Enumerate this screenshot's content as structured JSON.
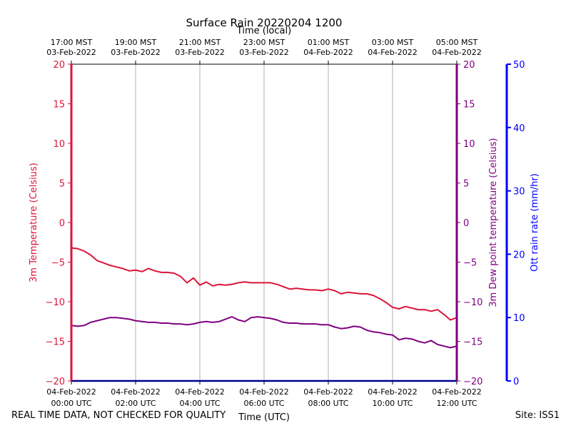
{
  "chart_data": {
    "type": "line",
    "title": "Surface Rain 20220204 1200",
    "top_axis_label": "Time (local)",
    "bottom_axis_label": "Time (UTC)",
    "x_range_hours_utc": [
      0,
      12
    ],
    "top_ticks": [
      {
        "hour": 0,
        "time": "17:00 MST",
        "date": "03-Feb-2022"
      },
      {
        "hour": 2,
        "time": "19:00 MST",
        "date": "03-Feb-2022"
      },
      {
        "hour": 4,
        "time": "21:00 MST",
        "date": "03-Feb-2022"
      },
      {
        "hour": 6,
        "time": "23:00 MST",
        "date": "03-Feb-2022"
      },
      {
        "hour": 8,
        "time": "01:00 MST",
        "date": "04-Feb-2022"
      },
      {
        "hour": 10,
        "time": "03:00 MST",
        "date": "04-Feb-2022"
      },
      {
        "hour": 12,
        "time": "05:00 MST",
        "date": "04-Feb-2022"
      }
    ],
    "bottom_ticks": [
      {
        "hour": 0,
        "date": "04-Feb-2022",
        "time": "00:00 UTC"
      },
      {
        "hour": 2,
        "date": "04-Feb-2022",
        "time": "02:00 UTC"
      },
      {
        "hour": 4,
        "date": "04-Feb-2022",
        "time": "04:00 UTC"
      },
      {
        "hour": 6,
        "date": "04-Feb-2022",
        "time": "06:00 UTC"
      },
      {
        "hour": 8,
        "date": "04-Feb-2022",
        "time": "08:00 UTC"
      },
      {
        "hour": 10,
        "date": "04-Feb-2022",
        "time": "10:00 UTC"
      },
      {
        "hour": 12,
        "date": "04-Feb-2022",
        "time": "12:00 UTC"
      }
    ],
    "left_axis": {
      "label": "3m Temperature (Celsius)",
      "ylim": [
        -20,
        20
      ],
      "ticks": [
        -20,
        -15,
        -10,
        -5,
        0,
        5,
        10,
        15,
        20
      ],
      "color": "#dc143c"
    },
    "right_axis": {
      "label": "3m Dew point temperature (Celsius)",
      "ylim": [
        -20,
        20
      ],
      "ticks": [
        -20,
        -15,
        -10,
        -5,
        0,
        5,
        10,
        15,
        20
      ],
      "color": "#800080"
    },
    "rain_axis": {
      "label": "Ott rain rate (mm/hr)",
      "ylim": [
        0,
        50
      ],
      "ticks": [
        0,
        10,
        20,
        30,
        40,
        50
      ],
      "color": "#0000ff"
    },
    "grid": true,
    "series": [
      {
        "name": "3m Temperature",
        "axis": "left",
        "color": "#dc143c",
        "x": [
          0,
          0.2,
          0.4,
          0.6,
          0.8,
          1.0,
          1.2,
          1.4,
          1.6,
          1.8,
          2.0,
          2.2,
          2.4,
          2.6,
          2.8,
          3.0,
          3.2,
          3.4,
          3.6,
          3.8,
          4.0,
          4.2,
          4.4,
          4.6,
          4.8,
          5.0,
          5.2,
          5.4,
          5.6,
          5.8,
          6.0,
          6.2,
          6.4,
          6.6,
          6.8,
          7.0,
          7.2,
          7.4,
          7.6,
          7.8,
          8.0,
          8.2,
          8.4,
          8.6,
          8.8,
          9.0,
          9.2,
          9.4,
          9.6,
          9.8,
          10.0,
          10.2,
          10.4,
          10.6,
          10.8,
          11.0,
          11.2,
          11.4,
          11.6,
          11.8,
          12.0
        ],
        "values": [
          -3.2,
          -3.3,
          -3.6,
          -4.1,
          -4.8,
          -5.1,
          -5.4,
          -5.6,
          -5.8,
          -6.1,
          -6.0,
          -6.2,
          -5.8,
          -6.1,
          -6.3,
          -6.3,
          -6.4,
          -6.8,
          -7.6,
          -7.0,
          -7.9,
          -7.5,
          -8.0,
          -7.8,
          -7.9,
          -7.8,
          -7.6,
          -7.5,
          -7.6,
          -7.6,
          -7.6,
          -7.6,
          -7.8,
          -8.1,
          -8.4,
          -8.3,
          -8.4,
          -8.5,
          -8.5,
          -8.6,
          -8.4,
          -8.6,
          -9.0,
          -8.8,
          -8.9,
          -9.0,
          -9.0,
          -9.2,
          -9.6,
          -10.1,
          -10.7,
          -10.9,
          -10.6,
          -10.8,
          -11.0,
          -11.0,
          -11.2,
          -11.0,
          -11.6,
          -12.3,
          -12.0
        ]
      },
      {
        "name": "3m Dew point temperature",
        "axis": "right",
        "color": "#800080",
        "x": [
          0,
          0.2,
          0.4,
          0.6,
          0.8,
          1.0,
          1.2,
          1.4,
          1.6,
          1.8,
          2.0,
          2.2,
          2.4,
          2.6,
          2.8,
          3.0,
          3.2,
          3.4,
          3.6,
          3.8,
          4.0,
          4.2,
          4.4,
          4.6,
          4.8,
          5.0,
          5.2,
          5.4,
          5.6,
          5.8,
          6.0,
          6.2,
          6.4,
          6.6,
          6.8,
          7.0,
          7.2,
          7.4,
          7.6,
          7.8,
          8.0,
          8.2,
          8.4,
          8.6,
          8.8,
          9.0,
          9.2,
          9.4,
          9.6,
          9.8,
          10.0,
          10.2,
          10.4,
          10.6,
          10.8,
          11.0,
          11.2,
          11.4,
          11.6,
          11.8,
          12.0
        ],
        "values": [
          -13.0,
          -13.1,
          -13.0,
          -12.6,
          -12.4,
          -12.2,
          -12.0,
          -12.0,
          -12.1,
          -12.2,
          -12.4,
          -12.5,
          -12.6,
          -12.6,
          -12.7,
          -12.7,
          -12.8,
          -12.8,
          -12.9,
          -12.8,
          -12.6,
          -12.5,
          -12.6,
          -12.5,
          -12.2,
          -11.9,
          -12.3,
          -12.5,
          -12.0,
          -11.9,
          -12.0,
          -12.1,
          -12.3,
          -12.6,
          -12.7,
          -12.7,
          -12.8,
          -12.8,
          -12.8,
          -12.9,
          -12.9,
          -13.2,
          -13.4,
          -13.3,
          -13.1,
          -13.2,
          -13.6,
          -13.8,
          -13.9,
          -14.1,
          -14.2,
          -14.8,
          -14.6,
          -14.7,
          -15.0,
          -15.2,
          -14.9,
          -15.4,
          -15.6,
          -15.8,
          -15.6
        ]
      },
      {
        "name": "Ott rain rate",
        "axis": "rain",
        "color": "#0000ff",
        "x": [
          0,
          12
        ],
        "values": [
          0,
          0
        ]
      }
    ]
  },
  "footer": {
    "disclaimer": "REAL TIME DATA, NOT CHECKED FOR QUALITY",
    "site": "Site: ISS1"
  },
  "colors": {
    "temperature": "#dc143c",
    "dewpoint": "#800080",
    "rain": "#0000ff",
    "grid": "#b0b0b0"
  }
}
